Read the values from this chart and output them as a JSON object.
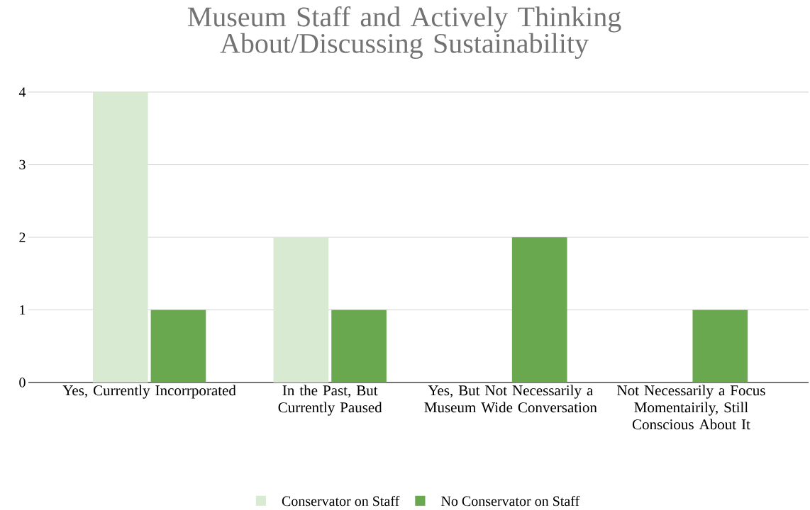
{
  "chart_data": {
    "type": "bar",
    "title": "Museum Staff and Actively Thinking About/Discussing Sustainability",
    "categories": [
      "Yes, Currently Incorrporated",
      "In the Past, But Currently Paused",
      "Yes, But Not Necessarily a Museum Wide Conversation",
      "Not Necessarily a Focus Momentairily, Still Conscious About It"
    ],
    "series": [
      {
        "name": "Conservator on Staff",
        "color": "#d9ead3",
        "values": [
          4,
          2,
          0,
          0
        ]
      },
      {
        "name": "No Conservator on Staff",
        "color": "#6aa84f",
        "values": [
          1,
          1,
          2,
          1
        ]
      }
    ],
    "ylim": [
      0,
      4
    ],
    "yticks": [
      0,
      1,
      2,
      3,
      4
    ],
    "grid": "y",
    "legend": "bottom"
  }
}
